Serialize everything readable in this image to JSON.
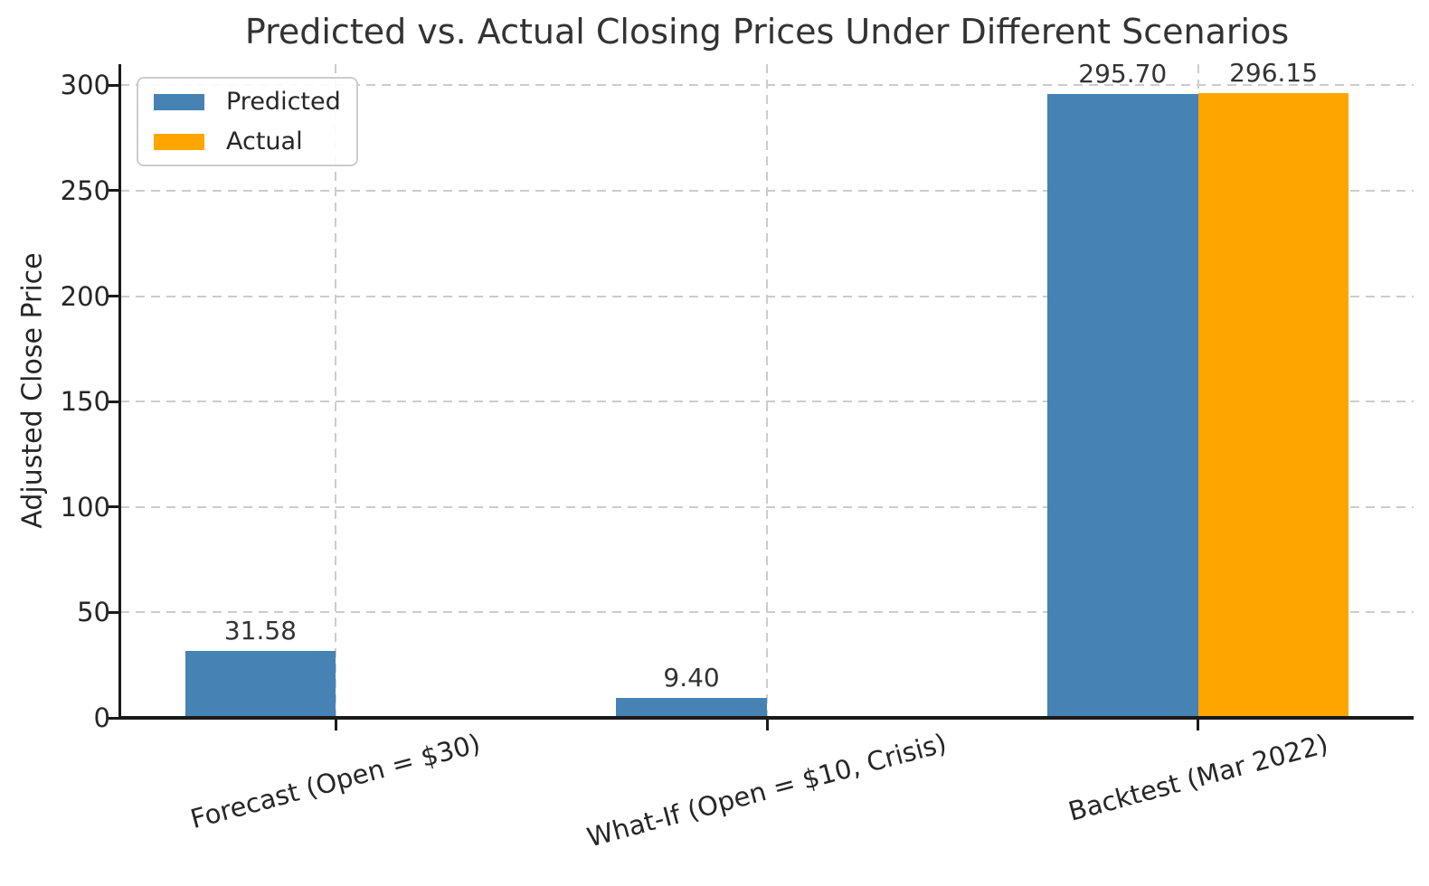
{
  "chart_data": {
    "type": "bar",
    "title": "Predicted vs. Actual Closing Prices Under Different Scenarios",
    "xlabel": "",
    "ylabel": "Adjusted Close Price",
    "categories": [
      "Forecast (Open = $30)",
      "What-If (Open = $10, Crisis)",
      "Backtest (Mar 2022)"
    ],
    "series": [
      {
        "name": "Predicted",
        "color": "#4682B4",
        "values": [
          31.58,
          9.4,
          295.7
        ],
        "value_labels": [
          "31.58",
          "9.40",
          "295.70"
        ]
      },
      {
        "name": "Actual",
        "color": "#FFA500",
        "values": [
          null,
          null,
          296.15
        ],
        "value_labels": [
          null,
          null,
          "296.15"
        ]
      }
    ],
    "yticks": [
      0,
      50,
      100,
      150,
      200,
      250,
      300
    ],
    "ytick_labels": [
      "0",
      "50",
      "100",
      "150",
      "200",
      "250",
      "300"
    ],
    "ylim": [
      0,
      310
    ],
    "bar_width_fraction": 0.35,
    "grid": true,
    "grid_style": "dashed",
    "xtick_rotation_deg": 15,
    "legend_position": "upper-left"
  },
  "colors": {
    "predicted": "#4682B4",
    "actual": "#FFA500",
    "text": "#262626",
    "title": "#333333",
    "grid": "#cccccc",
    "spine": "#1a1a1a",
    "background": "#ffffff"
  }
}
